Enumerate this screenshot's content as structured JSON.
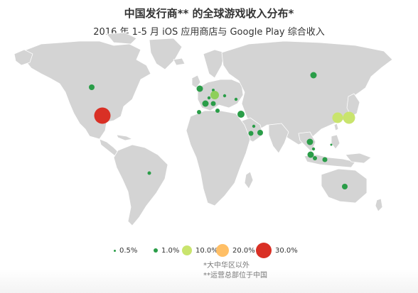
{
  "title": "中国发行商** 的全球游戏收入分布*",
  "subtitle": "2016 年 1-5 月 iOS 应用商店与 Google Play 综合收入",
  "legend": [
    {
      "label": "0.5%",
      "value": 0.5,
      "color": "#2a9d48"
    },
    {
      "label": "1.0%",
      "value": 1.0,
      "color": "#2a9d48"
    },
    {
      "label": "10.0%",
      "value": 10.0,
      "color": "#c9e46d"
    },
    {
      "label": "20.0%",
      "value": 20.0,
      "color": "#ffbf66"
    },
    {
      "label": "30.0%",
      "value": 30.0,
      "color": "#d93025"
    }
  ],
  "footnotes": {
    "note1": "*大中华区以外",
    "note2": "**运营总部位于中国"
  },
  "colors": {
    "land": "#d4d4d4",
    "border": "#ffffff"
  }
}
